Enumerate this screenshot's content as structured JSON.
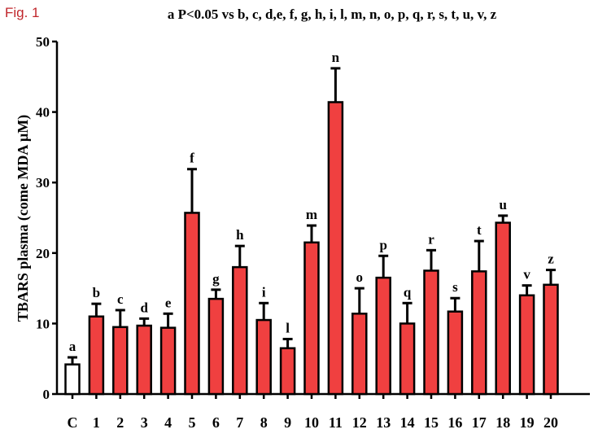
{
  "figure_label": "Fig. 1",
  "chart_data": {
    "type": "bar",
    "title": "a P<0.05 vs b, c, d,e, f, g, h, i, l, m, n, o, p, q, r, s, t, u, v, z",
    "ylabel": "TBARS plasma (come MDA µM)",
    "xlabel": "",
    "ylim": [
      0,
      50
    ],
    "yticks": [
      0,
      10,
      20,
      30,
      40,
      50
    ],
    "grid": false,
    "colors": {
      "control": "#ffffff",
      "treated": "#f04040",
      "outline": "#000000"
    },
    "categories": [
      "C",
      "1",
      "2",
      "3",
      "4",
      "5",
      "6",
      "7",
      "8",
      "9",
      "10",
      "11",
      "12",
      "13",
      "14",
      "15",
      "16",
      "17",
      "18",
      "19",
      "20"
    ],
    "values": [
      4.2,
      11.0,
      9.5,
      9.7,
      9.4,
      25.7,
      13.5,
      18.0,
      10.5,
      6.5,
      21.5,
      41.4,
      11.4,
      16.5,
      10.0,
      17.5,
      11.7,
      17.4,
      24.3,
      14.0,
      15.5
    ],
    "errors": [
      1.0,
      1.8,
      2.4,
      1.0,
      2.0,
      6.2,
      1.3,
      3.0,
      2.4,
      1.3,
      2.4,
      4.8,
      3.6,
      3.1,
      2.9,
      2.9,
      1.9,
      4.3,
      1.0,
      1.4,
      2.1
    ],
    "labels": [
      "a",
      "b",
      "c",
      "d",
      "e",
      "f",
      "g",
      "h",
      "i",
      "l",
      "m",
      "n",
      "o",
      "p",
      "q",
      "r",
      "s",
      "t",
      "u",
      "v",
      "z"
    ]
  }
}
